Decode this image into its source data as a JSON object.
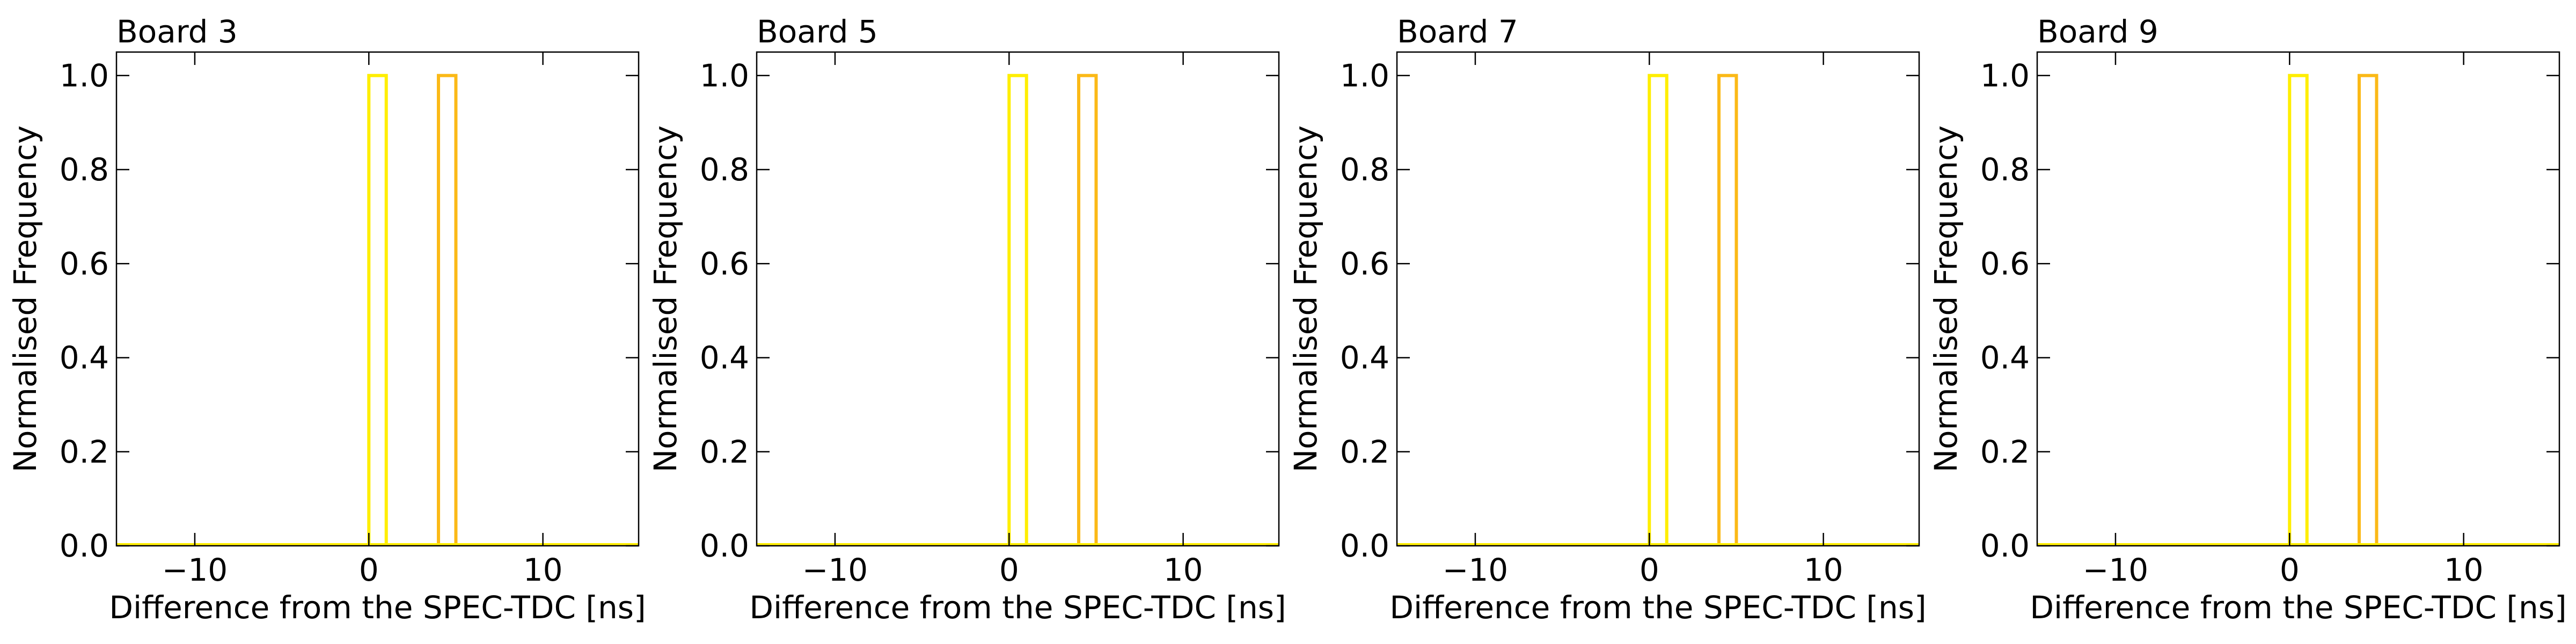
{
  "chart_data": [
    {
      "type": "step-histogram",
      "title": "Board 3",
      "xlabel": "Difference from the SPEC-TDC [ns]",
      "ylabel": "Normalised Frequency",
      "xlim": [
        -14.5,
        15.5
      ],
      "ylim": [
        0,
        1.05
      ],
      "xticks": [
        -10,
        0,
        10
      ],
      "xtick_labels": [
        "−10",
        "0",
        "10"
      ],
      "yticks": [
        0.0,
        0.2,
        0.4,
        0.6,
        0.8,
        1.0
      ],
      "ytick_labels": [
        "0.0",
        "0.2",
        "0.4",
        "0.6",
        "0.8",
        "1.0"
      ],
      "series": [
        {
          "color": "#ffee00",
          "bins": [
            [
              0,
              1
            ]
          ],
          "values": [
            1.0
          ]
        },
        {
          "color": "#fbb917",
          "bins": [
            [
              4,
              5
            ]
          ],
          "values": [
            1.0
          ]
        }
      ],
      "grid": false
    },
    {
      "type": "step-histogram",
      "title": "Board 5",
      "xlabel": "Difference from the SPEC-TDC [ns]",
      "ylabel": "Normalised Frequency",
      "xlim": [
        -14.5,
        15.5
      ],
      "ylim": [
        0,
        1.05
      ],
      "xticks": [
        -10,
        0,
        10
      ],
      "xtick_labels": [
        "−10",
        "0",
        "10"
      ],
      "yticks": [
        0.0,
        0.2,
        0.4,
        0.6,
        0.8,
        1.0
      ],
      "ytick_labels": [
        "0.0",
        "0.2",
        "0.4",
        "0.6",
        "0.8",
        "1.0"
      ],
      "series": [
        {
          "color": "#ffee00",
          "bins": [
            [
              0,
              1
            ]
          ],
          "values": [
            1.0
          ]
        },
        {
          "color": "#fbb917",
          "bins": [
            [
              4,
              5
            ]
          ],
          "values": [
            1.0
          ]
        }
      ],
      "grid": false
    },
    {
      "type": "step-histogram",
      "title": "Board 7",
      "xlabel": "Difference from the SPEC-TDC [ns]",
      "ylabel": "Normalised Frequency",
      "xlim": [
        -14.5,
        15.5
      ],
      "ylim": [
        0,
        1.05
      ],
      "xticks": [
        -10,
        0,
        10
      ],
      "xtick_labels": [
        "−10",
        "0",
        "10"
      ],
      "yticks": [
        0.0,
        0.2,
        0.4,
        0.6,
        0.8,
        1.0
      ],
      "ytick_labels": [
        "0.0",
        "0.2",
        "0.4",
        "0.6",
        "0.8",
        "1.0"
      ],
      "series": [
        {
          "color": "#ffee00",
          "bins": [
            [
              0,
              1
            ]
          ],
          "values": [
            1.0
          ]
        },
        {
          "color": "#fbb917",
          "bins": [
            [
              4,
              5
            ]
          ],
          "values": [
            1.0
          ]
        }
      ],
      "grid": false
    },
    {
      "type": "step-histogram",
      "title": "Board 9",
      "xlabel": "Difference from the SPEC-TDC [ns]",
      "ylabel": "Normalised Frequency",
      "xlim": [
        -14.5,
        15.5
      ],
      "ylim": [
        0,
        1.05
      ],
      "xticks": [
        -10,
        0,
        10
      ],
      "xtick_labels": [
        "−10",
        "0",
        "10"
      ],
      "yticks": [
        0.0,
        0.2,
        0.4,
        0.6,
        0.8,
        1.0
      ],
      "ytick_labels": [
        "0.0",
        "0.2",
        "0.4",
        "0.6",
        "0.8",
        "1.0"
      ],
      "series": [
        {
          "color": "#ffee00",
          "bins": [
            [
              0,
              1
            ]
          ],
          "values": [
            1.0
          ]
        },
        {
          "color": "#fbb917",
          "bins": [
            [
              4,
              5
            ]
          ],
          "values": [
            1.0
          ]
        }
      ],
      "grid": false
    }
  ]
}
